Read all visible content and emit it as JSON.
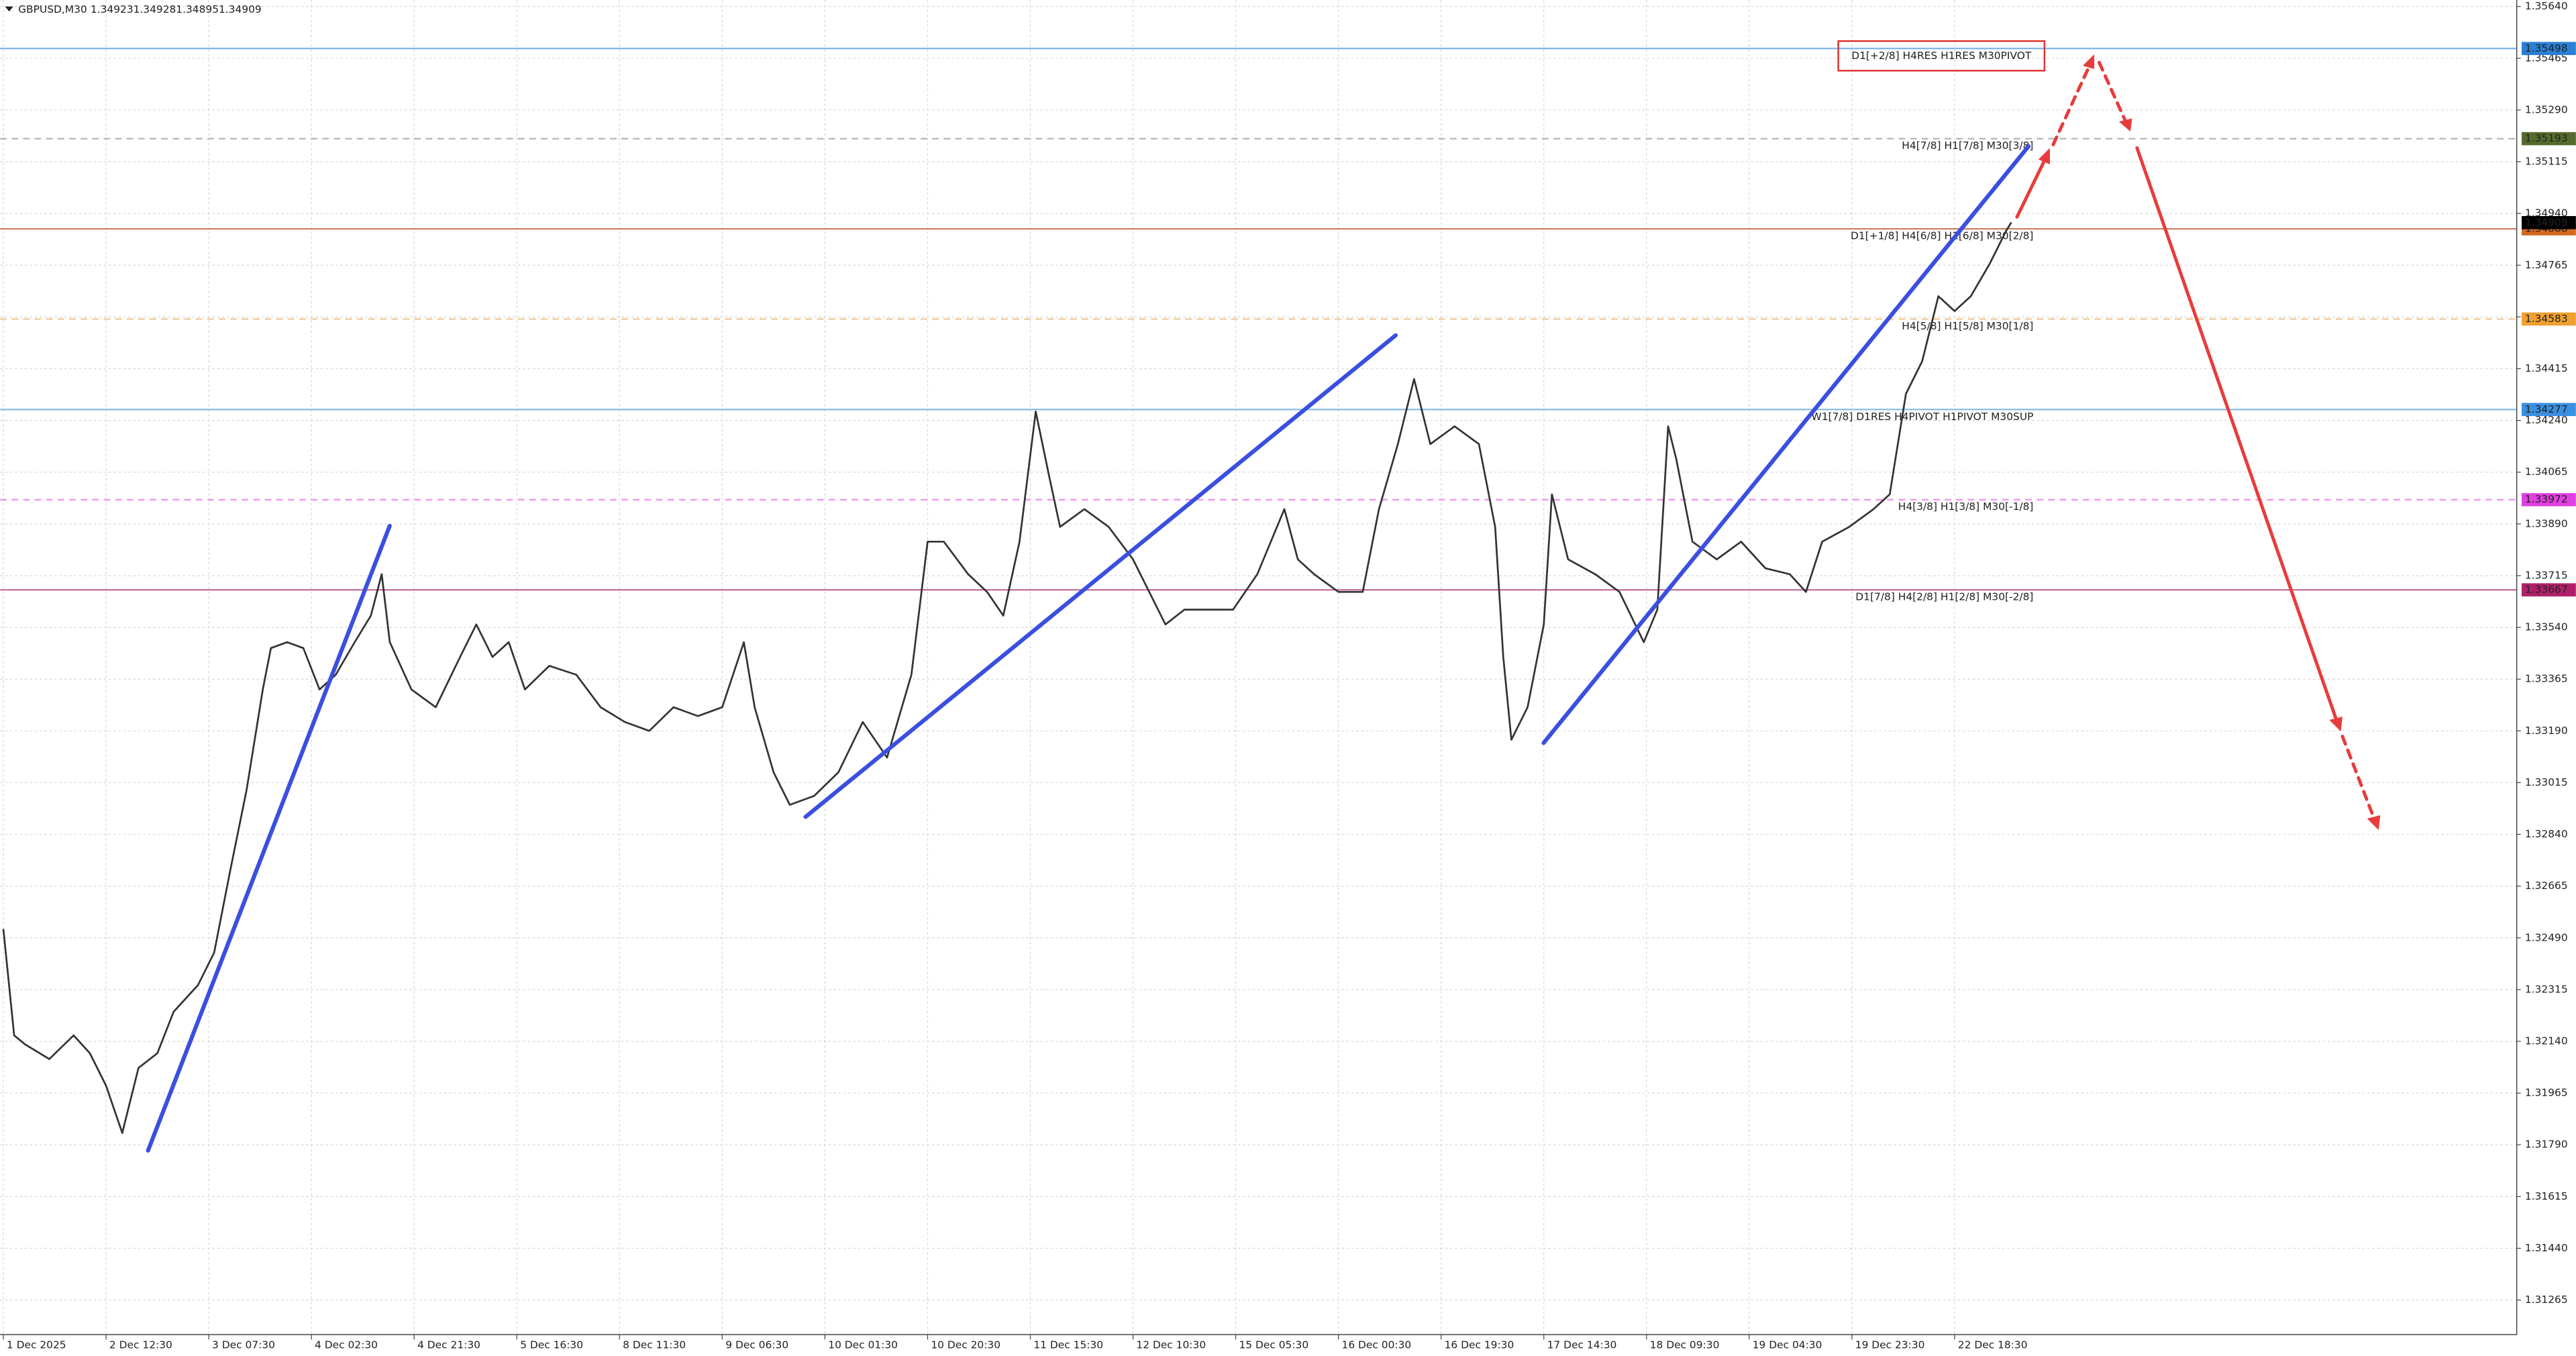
{
  "chart_data": {
    "type": "line",
    "symbol": "GBPUSD,M30",
    "ohlc": [
      1.34923,
      1.34928,
      1.34895,
      1.34909
    ],
    "grid": true,
    "series": [
      {
        "name": "GBPUSD",
        "color": "#333333",
        "x": [
          0,
          4,
          8,
          17,
          26,
          32,
          38,
          44,
          50,
          57,
          63,
          72,
          78,
          84,
          90,
          96,
          99,
          105,
          111,
          117,
          123,
          130,
          136,
          140,
          143,
          151,
          160,
          169,
          175,
          181,
          187,
          193,
          202,
          212,
          221,
          230,
          239,
          248,
          257,
          266,
          274,
          278,
          285,
          291,
          300,
          309,
          318,
          327,
          336,
          342,
          348,
          357,
          364,
          370,
          376,
          382,
          387,
          391,
          400,
          409,
          418,
          424,
          430,
          437,
          446,
          455,
          464,
          474,
          479,
          485,
          494,
          503,
          509,
          516,
          522,
          528,
          537,
          546,
          552,
          555,
          558,
          564,
          570,
          573,
          579,
          589,
          598,
          607,
          612,
          616,
          619,
          625,
          634,
          643,
          652,
          661,
          667,
          673,
          683,
          692,
          698,
          704,
          710,
          716,
          722,
          728,
          735,
          741,
          743
        ],
        "values": [
          1.3252,
          1.3216,
          1.3213,
          1.3208,
          1.3216,
          1.321,
          1.3199,
          1.3183,
          1.3205,
          1.321,
          1.3224,
          1.3233,
          1.3244,
          1.3272,
          1.3299,
          1.3333,
          1.3347,
          1.3349,
          1.3347,
          1.3333,
          1.3338,
          1.3349,
          1.3358,
          1.3372,
          1.3349,
          1.3333,
          1.3327,
          1.3344,
          1.3355,
          1.3344,
          1.3349,
          1.3333,
          1.3341,
          1.3338,
          1.3327,
          1.3322,
          1.3319,
          1.3327,
          1.3324,
          1.3327,
          1.3349,
          1.3327,
          1.3305,
          1.3294,
          1.3297,
          1.3305,
          1.3322,
          1.331,
          1.3338,
          1.3383,
          1.3383,
          1.3372,
          1.3366,
          1.3358,
          1.3383,
          1.3427,
          1.3405,
          1.3388,
          1.3394,
          1.3388,
          1.3377,
          1.3366,
          1.3355,
          1.336,
          1.336,
          1.336,
          1.3372,
          1.3394,
          1.3377,
          1.3372,
          1.3366,
          1.3366,
          1.3394,
          1.3416,
          1.3438,
          1.3416,
          1.3422,
          1.3416,
          1.3388,
          1.3344,
          1.3316,
          1.3327,
          1.3355,
          1.3399,
          1.3377,
          1.3372,
          1.3366,
          1.3349,
          1.336,
          1.3422,
          1.3411,
          1.3383,
          1.3377,
          1.3383,
          1.3374,
          1.3372,
          1.3366,
          1.3383,
          1.3388,
          1.3394,
          1.3399,
          1.3433,
          1.3444,
          1.3466,
          1.3461,
          1.3466,
          1.3477,
          1.3488,
          1.3491
        ]
      }
    ],
    "current_price": {
      "value": 1.34909,
      "color": "#000000"
    },
    "levels": [
      {
        "value": 1.35498,
        "label": "D1[+2/8] H4RES H1RES M30PIVOT",
        "color": "#7fb3e6",
        "tag_color": "#2a7fd4",
        "text_color": "#2a7fd4",
        "dashed": false,
        "box_color": "#e03030"
      },
      {
        "value": 1.35193,
        "label": "H4[7/8] H1[7/8] M30[3/8]",
        "color": "#b0b0b0",
        "tag_color": "#556b2f",
        "text_color": "#666633",
        "dashed": true
      },
      {
        "value": 1.34888,
        "label": "D1[+1/8] H4[6/8] H1[6/8] M30[2/8]",
        "color": "#c88060",
        "tag_color": "#d2691e",
        "text_color": "#e0501e",
        "dashed": false
      },
      {
        "value": 1.34583,
        "label": "H4[5/8] H1[5/8] M30[1/8]",
        "color": "#f0c890",
        "tag_color": "#f0a030",
        "text_color": "#f0a030",
        "dashed": true
      },
      {
        "value": 1.34277,
        "label": "W1[7/8] D1RES H4PIVOT H1PIVOT M30SUP",
        "color": "#80b8e8",
        "tag_color": "#3a8fe0",
        "text_color": "#3a8fe0",
        "dashed": false
      },
      {
        "value": 1.33972,
        "label": "H4[3/8] H1[3/8] M30[-1/8]",
        "color": "#f090f0",
        "tag_color": "#e040e0",
        "text_color": "#d030d0",
        "dashed": true
      },
      {
        "value": 1.33667,
        "label": "D1[7/8] H4[2/8] H1[2/8] M30[-2/8]",
        "color": "#c070a0",
        "tag_color": "#b0206a",
        "text_color": "#b03080",
        "dashed": false
      }
    ],
    "xlim": [
      -1.2,
      930
    ],
    "ylim": [
      1.31148,
      1.35662
    ],
    "xticks": [
      {
        "value": 0,
        "label": "1 Dec 2025"
      },
      {
        "value": 38,
        "label": "2 Dec 12:30"
      },
      {
        "value": 76,
        "label": "3 Dec 07:30"
      },
      {
        "value": 114,
        "label": "4 Dec 02:30"
      },
      {
        "value": 152,
        "label": "4 Dec 21:30"
      },
      {
        "value": 190,
        "label": "5 Dec 16:30"
      },
      {
        "value": 228,
        "label": "8 Dec 11:30"
      },
      {
        "value": 266,
        "label": "9 Dec 06:30"
      },
      {
        "value": 304,
        "label": "10 Dec 01:30"
      },
      {
        "value": 342,
        "label": "10 Dec 20:30"
      },
      {
        "value": 380,
        "label": "11 Dec 15:30"
      },
      {
        "value": 418,
        "label": "12 Dec 10:30"
      },
      {
        "value": 456,
        "label": "15 Dec 05:30"
      },
      {
        "value": 494,
        "label": "16 Dec 00:30"
      },
      {
        "value": 532,
        "label": "16 Dec 19:30"
      },
      {
        "value": 570,
        "label": "17 Dec 14:30"
      },
      {
        "value": 608,
        "label": "18 Dec 09:30"
      },
      {
        "value": 646,
        "label": "19 Dec 04:30"
      },
      {
        "value": 684,
        "label": "19 Dec 23:30"
      },
      {
        "value": 722,
        "label": "22 Dec 18:30"
      }
    ],
    "yticks": [
      {
        "value": 1.3564,
        "label": "1.35640"
      },
      1.35465,
      {
        "value": 1.3529,
        "label": "1.35290"
      },
      1.35115,
      {
        "value": 1.3494,
        "label": "1.34940"
      },
      1.34765,
      {
        "value": 1.3459,
        "label": "1.34590"
      },
      1.34415,
      {
        "value": 1.3424,
        "label": "1.34240"
      },
      1.34065,
      {
        "value": 1.3389,
        "label": "1.33890"
      },
      1.33715,
      {
        "value": 1.3354,
        "label": "1.33540"
      },
      1.33365,
      {
        "value": 1.3319,
        "label": "1.33190"
      },
      1.33015,
      {
        "value": 1.3284,
        "label": "1.32840"
      },
      1.32665,
      {
        "value": 1.3249,
        "label": "1.32490"
      },
      1.32315,
      {
        "value": 1.3214,
        "label": "1.32140"
      },
      1.31965,
      {
        "value": 1.3179,
        "label": "1.31790"
      },
      1.31615,
      {
        "value": 1.3144,
        "label": "1.31440"
      },
      1.31265
    ]
  }
}
